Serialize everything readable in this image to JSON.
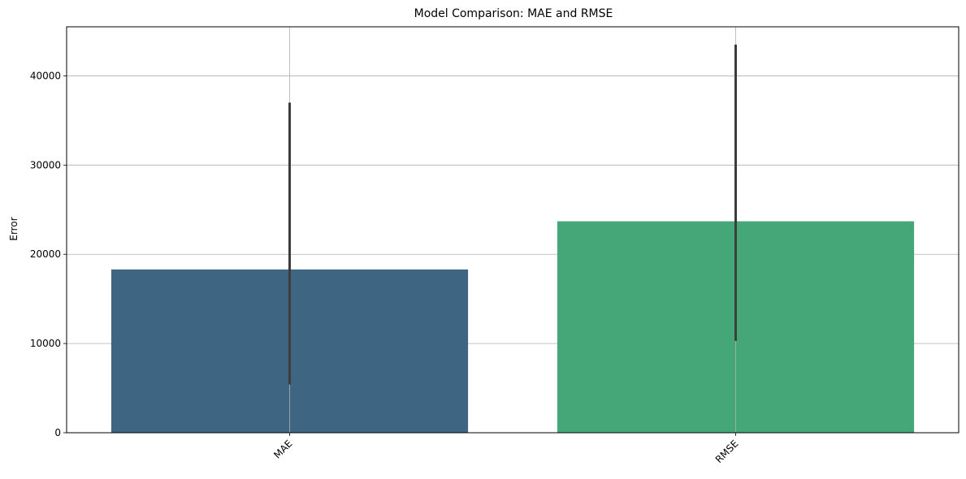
{
  "chart_data": {
    "type": "bar",
    "title": "Model Comparison: MAE and RMSE",
    "xlabel": "",
    "ylabel": "Error",
    "categories": [
      "MAE",
      "RMSE"
    ],
    "values": [
      18300,
      23700
    ],
    "error_low": [
      5400,
      10300
    ],
    "error_high": [
      37000,
      43500
    ],
    "ylim": [
      0,
      45500
    ],
    "yticks": [
      0,
      10000,
      20000,
      30000,
      40000
    ],
    "ytick_labels": [
      "0",
      "10000",
      "20000",
      "30000",
      "40000"
    ],
    "colors": [
      "#3e6682",
      "#45a778"
    ],
    "error_color": "#3d3d3d",
    "grid": true,
    "xtick_rotation": -45
  }
}
